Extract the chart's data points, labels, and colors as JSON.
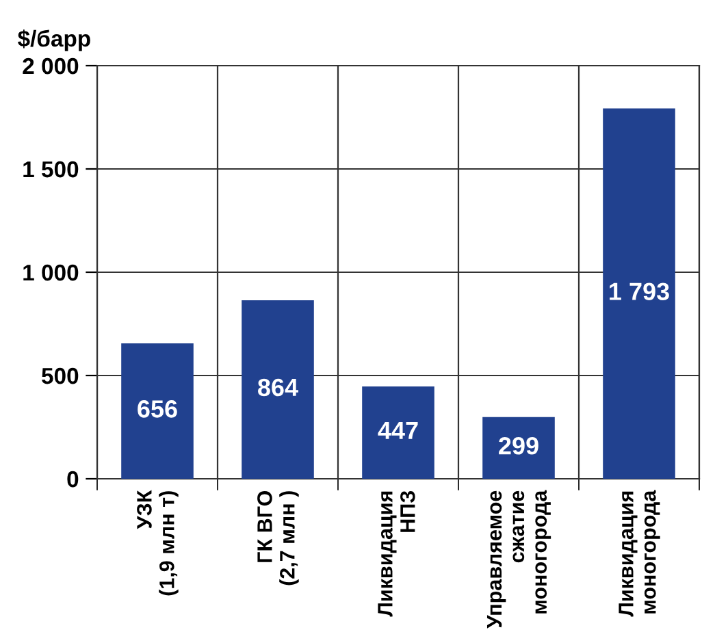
{
  "chart_data": {
    "type": "bar",
    "ylabel": "$/барр",
    "categories": [
      "УЗК\n(1,9 млн т)",
      "ГК ВГО\n(2,7 млн )",
      "Ликвидация\nНПЗ",
      "Управляемое\nсжатие\nмоногорода",
      "Ликвидация\nмоногорода"
    ],
    "values": [
      656,
      864,
      447,
      299,
      1793
    ],
    "value_labels": [
      "656",
      "864",
      "447",
      "299",
      "1 793"
    ],
    "color": "#21418f",
    "ylim": [
      0,
      2000
    ],
    "yticks": [
      {
        "value": 0,
        "label": "0"
      },
      {
        "value": 500,
        "label": "500"
      },
      {
        "value": 1000,
        "label": "1 000"
      },
      {
        "value": 1500,
        "label": "1 500"
      },
      {
        "value": 2000,
        "label": "2 000"
      }
    ],
    "grid": true
  }
}
